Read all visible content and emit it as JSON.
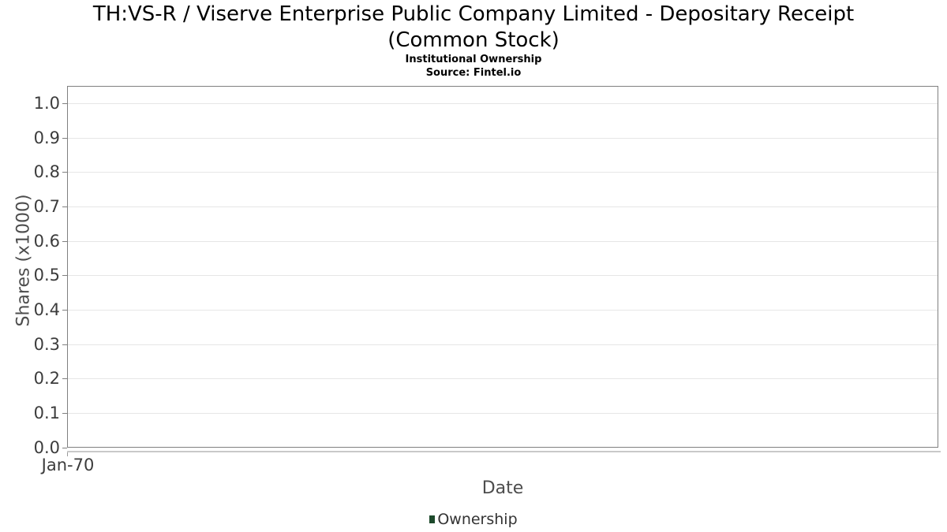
{
  "header": {
    "title_line1": "TH:VS-R / Viserve Enterprise Public Company Limited - Depositary Receipt",
    "title_line2": "(Common Stock)",
    "subtitle": "Institutional Ownership",
    "source": "Source: Fintel.io"
  },
  "chart_data": {
    "type": "bar",
    "title": "TH:VS-R / Viserve Enterprise Public Company Limited - Depositary Receipt (Common Stock)",
    "subtitle": "Institutional Ownership",
    "source": "Source: Fintel.io",
    "xlabel": "Date",
    "ylabel": "Shares (x1000)",
    "x_tick_labels": [
      "Jan-70"
    ],
    "y_tick_labels": [
      "0.0",
      "0.1",
      "0.2",
      "0.3",
      "0.4",
      "0.5",
      "0.6",
      "0.7",
      "0.8",
      "0.9",
      "1.0"
    ],
    "ylim": [
      0,
      1.05
    ],
    "grid": true,
    "legend": {
      "position": "bottom",
      "entries": [
        {
          "label": "Ownership",
          "color": "#1d4a2c"
        }
      ]
    },
    "series": [
      {
        "name": "Ownership",
        "color": "#1d4a2c",
        "x": [],
        "values": []
      }
    ]
  },
  "colors": {
    "background": "#ffffff",
    "plot_border": "#808080",
    "gridline": "#e6e6e6",
    "x_axis_line": "#c9c9c9",
    "tick_label": "#3c3c3c",
    "axis_title": "#4d4d4d",
    "title_text": "#000000",
    "legend_text": "#333333",
    "legend_marker": "#1d4a2c"
  }
}
